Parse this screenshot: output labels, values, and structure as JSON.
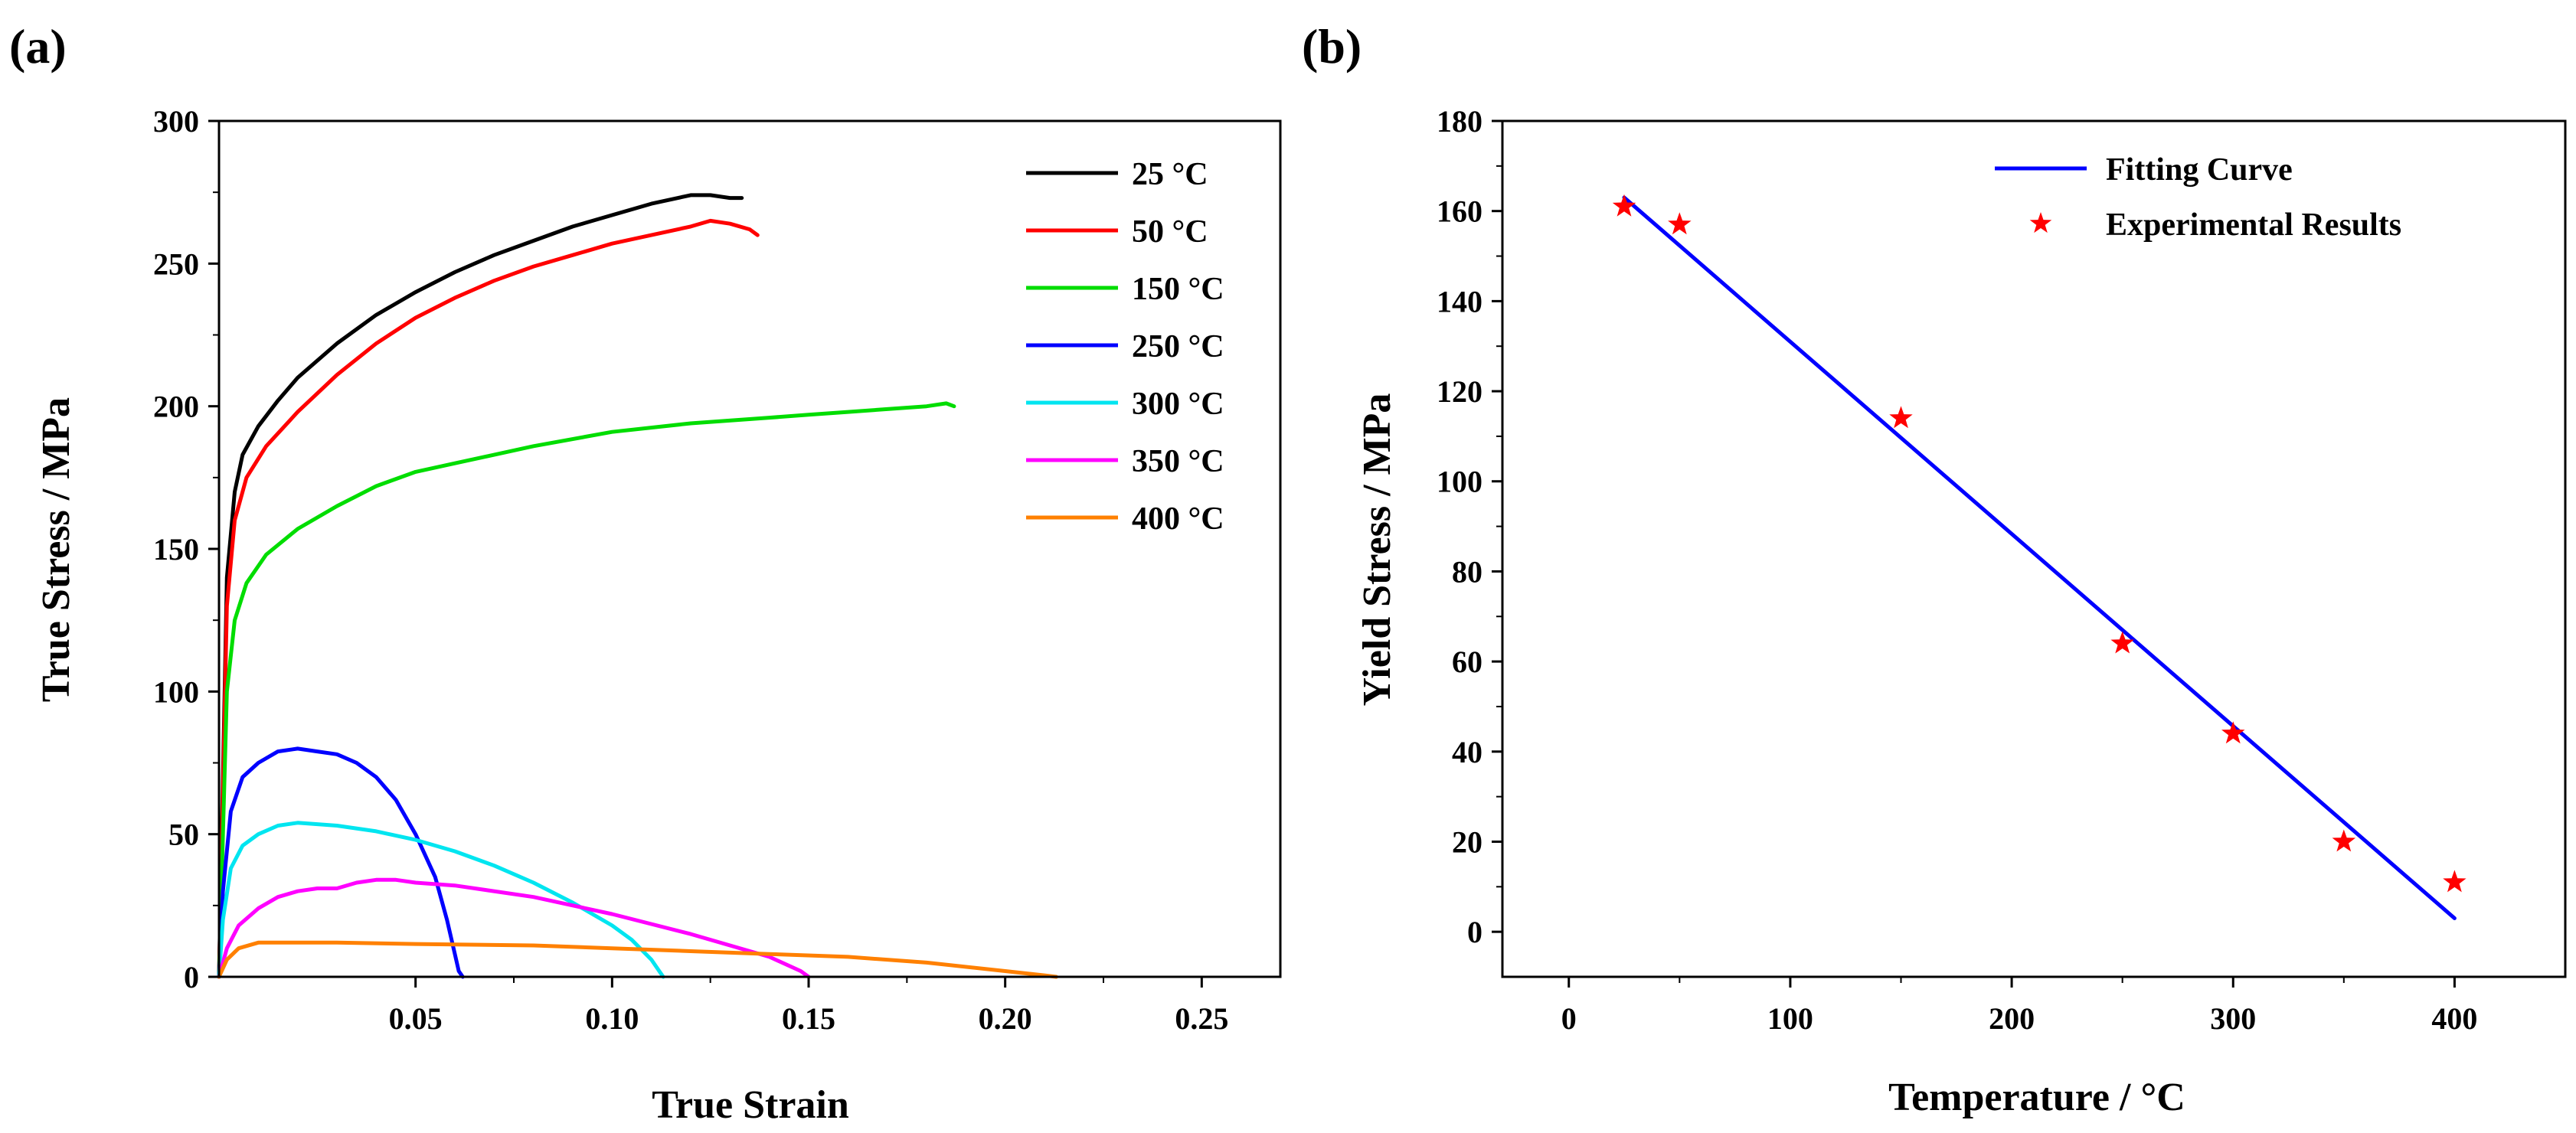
{
  "chart_data": [
    {
      "panel": "(a)",
      "type": "line",
      "title": "",
      "xlabel": "True Strain",
      "ylabel": "True Stress / MPa",
      "xlim": [
        0,
        0.27
      ],
      "ylim": [
        0,
        300
      ],
      "xticks": [
        0.05,
        0.1,
        0.15,
        0.2,
        0.25
      ],
      "xtick_labels": [
        "0.05",
        "0.10",
        "0.15",
        "0.20",
        "0.25"
      ],
      "yticks": [
        0,
        50,
        100,
        150,
        200,
        250,
        300
      ],
      "ytick_labels": [
        "0",
        "50",
        "100",
        "150",
        "200",
        "250",
        "300"
      ],
      "legend_position": "top-right",
      "series": [
        {
          "name": "25 °C",
          "color": "#000000",
          "x": [
            0,
            0.002,
            0.004,
            0.006,
            0.01,
            0.015,
            0.02,
            0.03,
            0.04,
            0.05,
            0.06,
            0.07,
            0.08,
            0.09,
            0.1,
            0.11,
            0.12,
            0.125,
            0.13,
            0.133
          ],
          "y": [
            0,
            140,
            170,
            183,
            193,
            202,
            210,
            222,
            232,
            240,
            247,
            253,
            258,
            263,
            267,
            271,
            274,
            274,
            273,
            273
          ]
        },
        {
          "name": "50 °C",
          "color": "#ff0000",
          "x": [
            0,
            0.002,
            0.004,
            0.007,
            0.012,
            0.02,
            0.03,
            0.04,
            0.05,
            0.06,
            0.07,
            0.08,
            0.09,
            0.1,
            0.11,
            0.12,
            0.125,
            0.13,
            0.135,
            0.137
          ],
          "y": [
            0,
            130,
            160,
            175,
            186,
            198,
            211,
            222,
            231,
            238,
            244,
            249,
            253,
            257,
            260,
            263,
            265,
            264,
            262,
            260
          ]
        },
        {
          "name": "150 °C",
          "color": "#00dd00",
          "x": [
            0,
            0.002,
            0.004,
            0.007,
            0.012,
            0.02,
            0.03,
            0.04,
            0.05,
            0.06,
            0.08,
            0.1,
            0.12,
            0.14,
            0.15,
            0.16,
            0.17,
            0.18,
            0.185,
            0.187
          ],
          "y": [
            0,
            100,
            125,
            138,
            148,
            157,
            165,
            172,
            177,
            180,
            186,
            191,
            194,
            196,
            197,
            198,
            199,
            200,
            201,
            200
          ]
        },
        {
          "name": "250 °C",
          "color": "#0000ff",
          "x": [
            0,
            0.001,
            0.003,
            0.006,
            0.01,
            0.015,
            0.02,
            0.025,
            0.03,
            0.035,
            0.04,
            0.045,
            0.05,
            0.055,
            0.058,
            0.06,
            0.061,
            0.062
          ],
          "y": [
            0,
            30,
            58,
            70,
            75,
            79,
            80,
            79,
            78,
            75,
            70,
            62,
            50,
            35,
            20,
            8,
            2,
            0
          ]
        },
        {
          "name": "300 °C",
          "color": "#00e5f0",
          "x": [
            0,
            0.001,
            0.003,
            0.006,
            0.01,
            0.015,
            0.02,
            0.03,
            0.04,
            0.05,
            0.06,
            0.07,
            0.08,
            0.09,
            0.1,
            0.105,
            0.11,
            0.112,
            0.113
          ],
          "y": [
            0,
            20,
            38,
            46,
            50,
            53,
            54,
            53,
            51,
            48,
            44,
            39,
            33,
            26,
            18,
            13,
            6,
            2,
            0
          ]
        },
        {
          "name": "350 °C",
          "color": "#ff00ff",
          "x": [
            0,
            0.002,
            0.005,
            0.01,
            0.015,
            0.02,
            0.025,
            0.03,
            0.035,
            0.04,
            0.045,
            0.05,
            0.06,
            0.08,
            0.1,
            0.12,
            0.14,
            0.148,
            0.15
          ],
          "y": [
            0,
            10,
            18,
            24,
            28,
            30,
            31,
            31,
            33,
            34,
            34,
            33,
            32,
            28,
            22,
            15,
            7,
            2,
            0
          ]
        },
        {
          "name": "400 °C",
          "color": "#ff8000",
          "x": [
            0,
            0.002,
            0.005,
            0.01,
            0.015,
            0.03,
            0.05,
            0.08,
            0.1,
            0.12,
            0.14,
            0.16,
            0.18,
            0.2,
            0.21,
            0.213
          ],
          "y": [
            0,
            6,
            10,
            12,
            12,
            12,
            11.5,
            11,
            10,
            9,
            8,
            7,
            5,
            2,
            0.5,
            0
          ]
        }
      ]
    },
    {
      "panel": "(b)",
      "type": "scatter",
      "title": "",
      "xlabel": "Temperature / °C",
      "ylabel": "Yield Stress / MPa",
      "xlim": [
        -30,
        450
      ],
      "ylim": [
        -10,
        180
      ],
      "xticks": [
        0,
        100,
        200,
        300,
        400
      ],
      "xtick_labels": [
        "0",
        "100",
        "200",
        "300",
        "400"
      ],
      "yticks": [
        0,
        20,
        40,
        60,
        80,
        100,
        120,
        140,
        160,
        180
      ],
      "ytick_labels": [
        "0",
        "20",
        "40",
        "60",
        "80",
        "100",
        "120",
        "140",
        "160",
        "180"
      ],
      "legend_position": "top-right",
      "series": [
        {
          "name": "Fitting Curve",
          "type": "line",
          "color": "#0000ff",
          "x": [
            25,
            400
          ],
          "y": [
            163,
            3
          ]
        },
        {
          "name": "Experimental Results",
          "type": "scatter",
          "marker": "star",
          "color": "#ff0000",
          "x": [
            25,
            50,
            150,
            250,
            300,
            350,
            400
          ],
          "y": [
            161,
            157,
            114,
            64,
            44,
            20,
            11
          ]
        }
      ]
    }
  ]
}
